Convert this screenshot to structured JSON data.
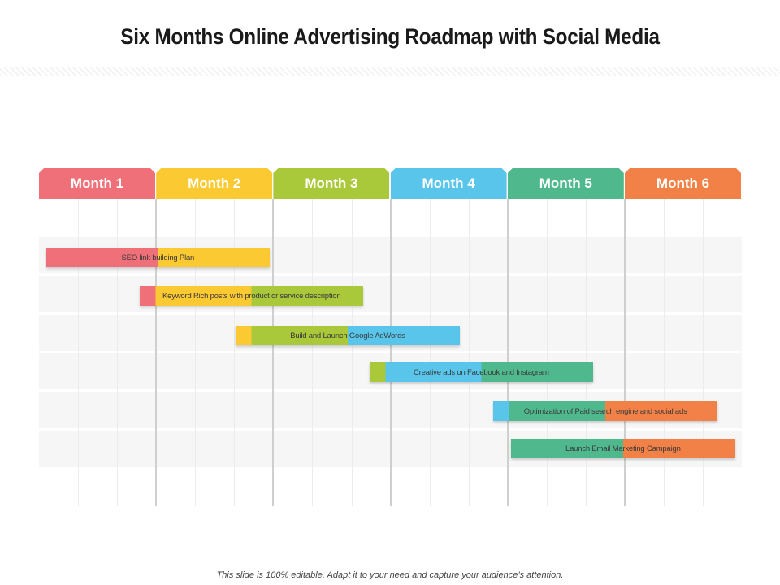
{
  "title": "Six Months Online Advertising Roadmap with Social Media",
  "months": [
    {
      "label": "Month 1",
      "color": "#f07079"
    },
    {
      "label": "Month 2",
      "color": "#fbc932"
    },
    {
      "label": "Month 3",
      "color": "#a9c93a"
    },
    {
      "label": "Month 4",
      "color": "#59c5ea"
    },
    {
      "label": "Month 5",
      "color": "#4fb98d"
    },
    {
      "label": "Month 6",
      "color": "#f18147"
    }
  ],
  "tasks": [
    {
      "label": "SEO link building Plan",
      "start_month": 0.06,
      "end_month": 1.97,
      "color_from": "#f07079",
      "color_to": "#fbc932"
    },
    {
      "label": "Keyword Rich posts with product or service description",
      "start_month": 0.86,
      "end_month": 2.77,
      "color_from": "#f07079",
      "color_to": "#fbc932",
      "color_tail": "#a9c93a"
    },
    {
      "label": "Build and Launch Google AdWords",
      "start_month": 1.68,
      "end_month": 3.59,
      "color_from": "#fbc932",
      "color_to": "#a9c93a",
      "color_tail": "#59c5ea"
    },
    {
      "label": "Creative ads on Facebook and Instagram",
      "start_month": 2.82,
      "end_month": 4.73,
      "color_from": "#a9c93a",
      "color_to": "#59c5ea",
      "color_tail": "#4fb98d"
    },
    {
      "label": "Optimization of Paid search engine and social ads",
      "start_month": 3.88,
      "end_month": 5.79,
      "color_from": "#59c5ea",
      "color_to": "#4fb98d",
      "color_tail": "#f18147"
    },
    {
      "label": "Launch Email Marketing Campaign",
      "start_month": 4.03,
      "end_month": 5.94,
      "color_from": "#4fb98d",
      "color_to": "#f18147"
    }
  ],
  "footer": "This slide is 100% editable. Adapt it to your need and capture your audience’s attention."
}
